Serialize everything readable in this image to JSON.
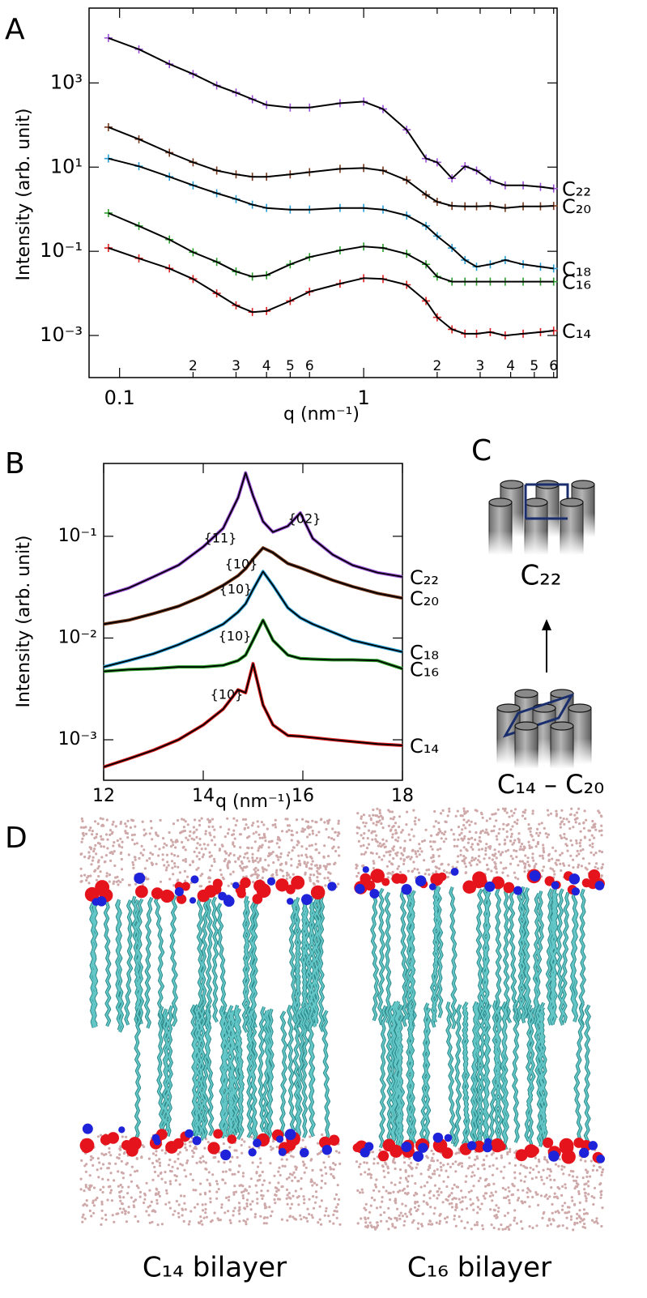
{
  "chart_data": [
    {
      "type": "scatter",
      "panel_label": "A",
      "x_label": "q (nm⁻¹)",
      "y_label": "Intensity (arb. unit)",
      "log_x": true,
      "log_y": true,
      "x": [
        0.09,
        0.12,
        0.16,
        0.2,
        0.25,
        0.3,
        0.35,
        0.4,
        0.5,
        0.6,
        0.8,
        1.0,
        1.2,
        1.5,
        1.8,
        2.0,
        2.3,
        2.6,
        2.9,
        3.3,
        3.8,
        4.5,
        5.3,
        6.0
      ],
      "xlim": [
        0.075,
        6.2
      ],
      "ylim": [
        0.0001,
        60000
      ],
      "xticks": [
        0.1,
        {
          "value": 0.2,
          "label": "2"
        },
        {
          "value": 0.3,
          "label": "3"
        },
        {
          "value": 0.4,
          "label": "4"
        },
        {
          "value": 0.5,
          "label": "5"
        },
        {
          "value": 0.6,
          "label": "6"
        },
        1,
        2,
        3,
        4,
        5,
        6
      ],
      "yticks": [
        {
          "value": 1000,
          "label": "10³"
        },
        {
          "value": 10,
          "label": "10¹"
        },
        {
          "value": 0.1,
          "label": "10⁻¹"
        },
        {
          "value": 0.001,
          "label": "10⁻³"
        }
      ],
      "series": [
        {
          "name": "C₂₂",
          "color": "#9b4fd9",
          "values": [
            11700,
            6300,
            2800,
            1630,
            870,
            590,
            410,
            300,
            260,
            260,
            330,
            360,
            240,
            77,
            16,
            13,
            5.4,
            10.5,
            8.3,
            4.9,
            3.7,
            3.7,
            3.4,
            3.1
          ]
        },
        {
          "name": "C₂₀",
          "color": "#7a3b1e",
          "values": [
            89,
            46,
            22,
            13,
            8.3,
            6.7,
            5.9,
            5.9,
            6.7,
            7.6,
            9.1,
            9.5,
            8.3,
            4.9,
            2.2,
            1.5,
            1.2,
            1.17,
            1.17,
            1.2,
            1.07,
            1.17,
            1.17,
            1.2
          ]
        },
        {
          "name": "C₁₈",
          "color": "#2a9fd6",
          "values": [
            16,
            10.5,
            5.9,
            3.7,
            2.4,
            1.74,
            1.28,
            1.07,
            0.98,
            0.98,
            1.07,
            1.07,
            0.98,
            0.71,
            0.4,
            0.23,
            0.12,
            0.062,
            0.043,
            0.049,
            0.062,
            0.049,
            0.043,
            0.039
          ]
        },
        {
          "name": "C₁₆",
          "color": "#2ca02c",
          "values": [
            0.81,
            0.4,
            0.19,
            0.095,
            0.056,
            0.033,
            0.025,
            0.027,
            0.049,
            0.073,
            0.105,
            0.13,
            0.12,
            0.087,
            0.049,
            0.025,
            0.019,
            0.019,
            0.019,
            0.019,
            0.019,
            0.019,
            0.019,
            0.019
          ]
        },
        {
          "name": "C₁₄",
          "color": "#e02020",
          "values": [
            0.12,
            0.068,
            0.039,
            0.022,
            0.01,
            0.0052,
            0.0036,
            0.0038,
            0.0066,
            0.011,
            0.017,
            0.023,
            0.022,
            0.016,
            0.0066,
            0.0027,
            0.0014,
            0.0011,
            0.0011,
            0.0012,
            0.001,
            0.0011,
            0.0012,
            0.0013
          ]
        }
      ]
    },
    {
      "type": "line",
      "panel_label": "B",
      "x_label": "q (nm⁻¹)",
      "y_label": "Intensity (arb. unit)",
      "log_y": true,
      "x": [
        12,
        12.5,
        13,
        13.5,
        14,
        14.4,
        14.7,
        14.85,
        15.0,
        15.2,
        15.4,
        15.7,
        15.95,
        16.2,
        16.6,
        17,
        17.5,
        18
      ],
      "xlim": [
        12,
        18
      ],
      "ylim": [
        0.0004,
        0.52
      ],
      "xticks": [
        12,
        14,
        16,
        18
      ],
      "yticks": [
        {
          "value": 0.1,
          "label": "10⁻¹"
        },
        {
          "value": 0.01,
          "label": "10⁻²"
        },
        {
          "value": 0.001,
          "label": "10⁻³"
        }
      ],
      "annotations": [
        "{11}",
        "{02}",
        "{10}",
        "{10}",
        "{10}",
        "{10}"
      ],
      "series": [
        {
          "name": "C₂₂",
          "color": "#9b4fd9",
          "values": [
            0.026,
            0.031,
            0.04,
            0.052,
            0.079,
            0.12,
            0.24,
            0.42,
            0.25,
            0.14,
            0.11,
            0.126,
            0.17,
            0.095,
            0.066,
            0.052,
            0.044,
            0.04
          ]
        },
        {
          "name": "C₂₀",
          "color": "#7a3b1e",
          "values": [
            0.0137,
            0.015,
            0.0174,
            0.0205,
            0.026,
            0.033,
            0.041,
            0.048,
            0.06,
            0.077,
            0.069,
            0.054,
            0.049,
            0.044,
            0.037,
            0.032,
            0.0275,
            0.0247
          ]
        },
        {
          "name": "C₁₈",
          "color": "#2a9fd6",
          "values": [
            0.0052,
            0.006,
            0.007,
            0.0086,
            0.011,
            0.0137,
            0.018,
            0.0217,
            0.03,
            0.045,
            0.033,
            0.0198,
            0.0158,
            0.0137,
            0.0114,
            0.0095,
            0.0083,
            0.0073
          ]
        },
        {
          "name": "C₁₆",
          "color": "#2ca02c",
          "values": [
            0.0047,
            0.0049,
            0.005,
            0.0052,
            0.0052,
            0.0054,
            0.006,
            0.0068,
            0.0095,
            0.015,
            0.0095,
            0.0068,
            0.0063,
            0.0062,
            0.0061,
            0.0061,
            0.006,
            0.005
          ]
        },
        {
          "name": "C₁₄",
          "color": "#e02020",
          "values": [
            0.00054,
            0.00065,
            0.00079,
            0.001,
            0.0014,
            0.002,
            0.0031,
            0.0029,
            0.0056,
            0.0022,
            0.0014,
            0.0011,
            0.00108,
            0.00105,
            0.001,
            0.00096,
            0.00091,
            0.00088
          ]
        }
      ]
    }
  ],
  "diagram": {
    "panel_label": "C",
    "top_label": "C₂₂",
    "bottom_label": "C₁₄ – C₂₀"
  },
  "images": {
    "panel_label": "D",
    "captions": [
      "C₁₄ bilayer",
      "C₁₆ bilayer"
    ]
  }
}
